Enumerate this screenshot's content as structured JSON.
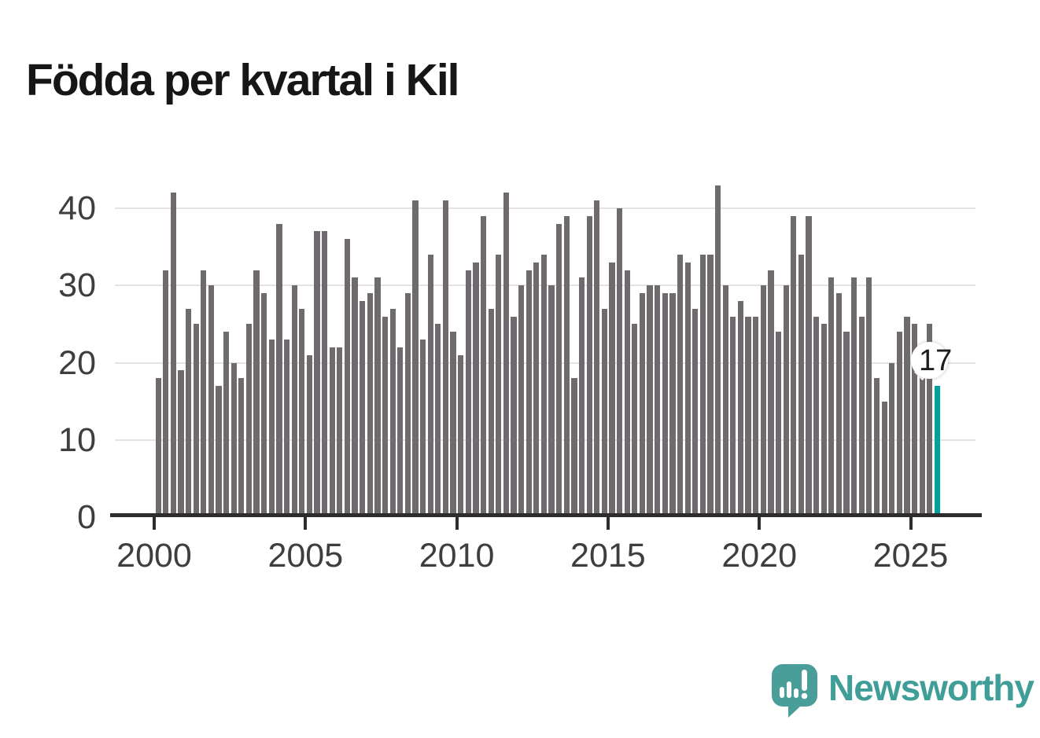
{
  "title": "Födda per kvartal i Kil",
  "annotation": {
    "label": "17"
  },
  "logo": {
    "text": "Newsworthy",
    "icon": "newsworthy-speech-bubble-chart-icon"
  },
  "colors": {
    "bar": "#6e6a6e",
    "highlight": "#00a29b",
    "grid": "#e3e3e3",
    "axis": "#2d2d2d",
    "tick_label": "#3e3e3e",
    "title": "#161616",
    "logo": "#3f9e98"
  },
  "chart_data": {
    "type": "bar",
    "title": "Födda per kvartal i Kil",
    "x_unit": "quarter",
    "start": "2000-Q1",
    "end": "2025-Q4",
    "xlabel": "",
    "ylabel": "",
    "ylim": [
      0,
      44
    ],
    "y_ticks": [
      0,
      10,
      20,
      30,
      40
    ],
    "x_ticks": [
      2000,
      2005,
      2010,
      2015,
      2020,
      2025
    ],
    "grid": "horizontal",
    "legend": "none",
    "highlight_last": true,
    "highlight_value": 17,
    "values": [
      18,
      32,
      42,
      19,
      27,
      25,
      32,
      30,
      17,
      24,
      20,
      18,
      25,
      32,
      29,
      23,
      38,
      23,
      30,
      27,
      21,
      37,
      37,
      22,
      22,
      36,
      31,
      28,
      29,
      31,
      26,
      27,
      22,
      29,
      41,
      23,
      34,
      25,
      41,
      24,
      21,
      32,
      33,
      39,
      27,
      34,
      42,
      26,
      30,
      32,
      33,
      34,
      30,
      38,
      39,
      18,
      31,
      39,
      41,
      27,
      33,
      40,
      32,
      25,
      29,
      30,
      30,
      29,
      29,
      34,
      33,
      27,
      34,
      34,
      43,
      30,
      26,
      28,
      26,
      26,
      30,
      32,
      24,
      30,
      39,
      34,
      39,
      26,
      25,
      31,
      29,
      24,
      31,
      26,
      31,
      18,
      15,
      20,
      24,
      26,
      25,
      22,
      25,
      17
    ]
  }
}
